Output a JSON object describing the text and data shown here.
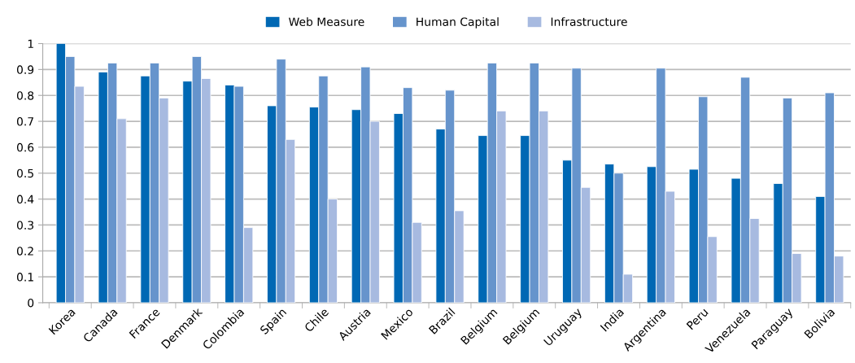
{
  "chart_data": {
    "type": "bar",
    "categories": [
      "Korea",
      "Canada",
      "France",
      "Denmark",
      "Colombia",
      "Spain",
      "Chile",
      "Austria",
      "Mexico",
      "Brazil",
      "Belgium",
      "Belgium",
      "Uruguay",
      "India",
      "Argentina",
      "Peru",
      "Venezuela",
      "Paraguay",
      "Bolivia"
    ],
    "series": [
      {
        "name": "Web Measure",
        "color": "#0068b4",
        "values": [
          1.0,
          0.89,
          0.875,
          0.855,
          0.84,
          0.76,
          0.755,
          0.745,
          0.73,
          0.67,
          0.645,
          0.645,
          0.55,
          0.535,
          0.525,
          0.515,
          0.48,
          0.46,
          0.41
        ]
      },
      {
        "name": "Human Capital",
        "color": "#6694cc",
        "values": [
          0.95,
          0.925,
          0.925,
          0.95,
          0.835,
          0.94,
          0.875,
          0.91,
          0.83,
          0.82,
          0.925,
          0.925,
          0.905,
          0.5,
          0.905,
          0.795,
          0.87,
          0.79,
          0.81
        ]
      },
      {
        "name": "Infrastructure",
        "color": "#a7bae0",
        "values": [
          0.835,
          0.71,
          0.79,
          0.865,
          0.29,
          0.63,
          0.4,
          0.7,
          0.31,
          0.355,
          0.74,
          0.74,
          0.445,
          0.11,
          0.43,
          0.255,
          0.325,
          0.19,
          0.18
        ]
      }
    ],
    "ylim": [
      0,
      1
    ],
    "yticks": [
      0,
      0.1,
      0.2,
      0.3,
      0.4,
      0.5,
      0.6,
      0.7,
      0.8,
      0.9,
      1
    ],
    "grid": "y",
    "legend": "top"
  }
}
